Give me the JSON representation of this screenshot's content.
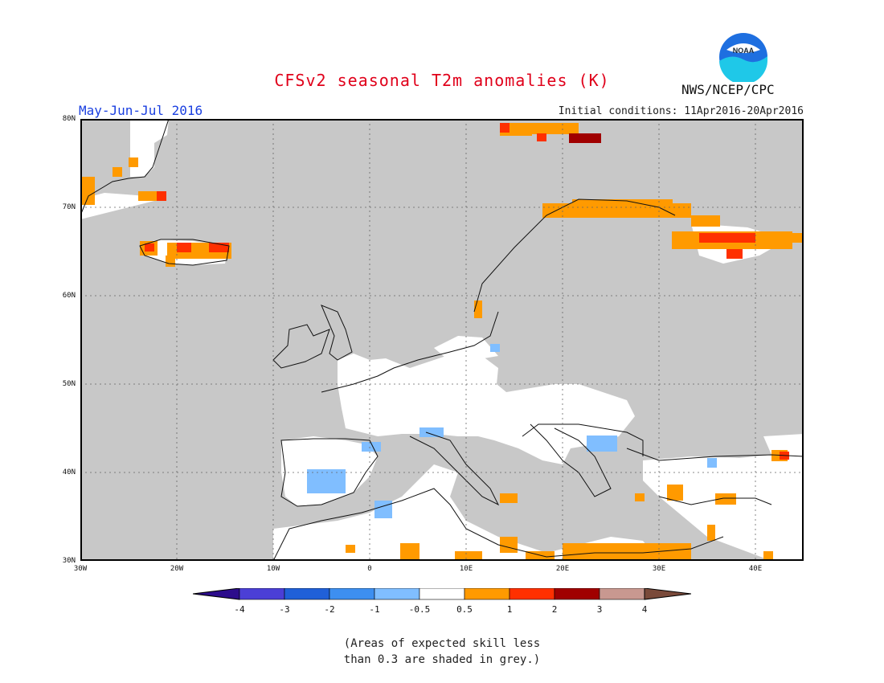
{
  "header": {
    "title": "CFSv2 seasonal T2m anomalies (K)",
    "period": "May-Jun-Jul 2016",
    "initial_conditions": "Initial conditions: 11Apr2016-20Apr2016",
    "agency": "NWS/NCEP/CPC",
    "logo_icon": "noaa-logo-icon"
  },
  "map": {
    "lat_labels": [
      "80N",
      "70N",
      "60N",
      "50N",
      "40N",
      "30N"
    ],
    "lon_labels": [
      "30W",
      "20W",
      "10W",
      "0",
      "10E",
      "20E",
      "30E",
      "40E"
    ],
    "background_color": "#c8c8c8",
    "skill_color": "#ffffff"
  },
  "colorbar": {
    "labels": [
      "-4",
      "-3",
      "-2",
      "-1",
      "-0.5",
      "0.5",
      "1",
      "2",
      "3",
      "4"
    ],
    "colors": [
      "#2c0c8c",
      "#4b3fd6",
      "#2060d8",
      "#3d8ff0",
      "#80beff",
      "#ffffff",
      "#ff9a00",
      "#ff3000",
      "#a00000",
      "#c89890",
      "#7a4a3a"
    ]
  },
  "footnote": {
    "line1": "(Areas of expected skill less",
    "line2": "than 0.3 are shaded in grey.)"
  }
}
